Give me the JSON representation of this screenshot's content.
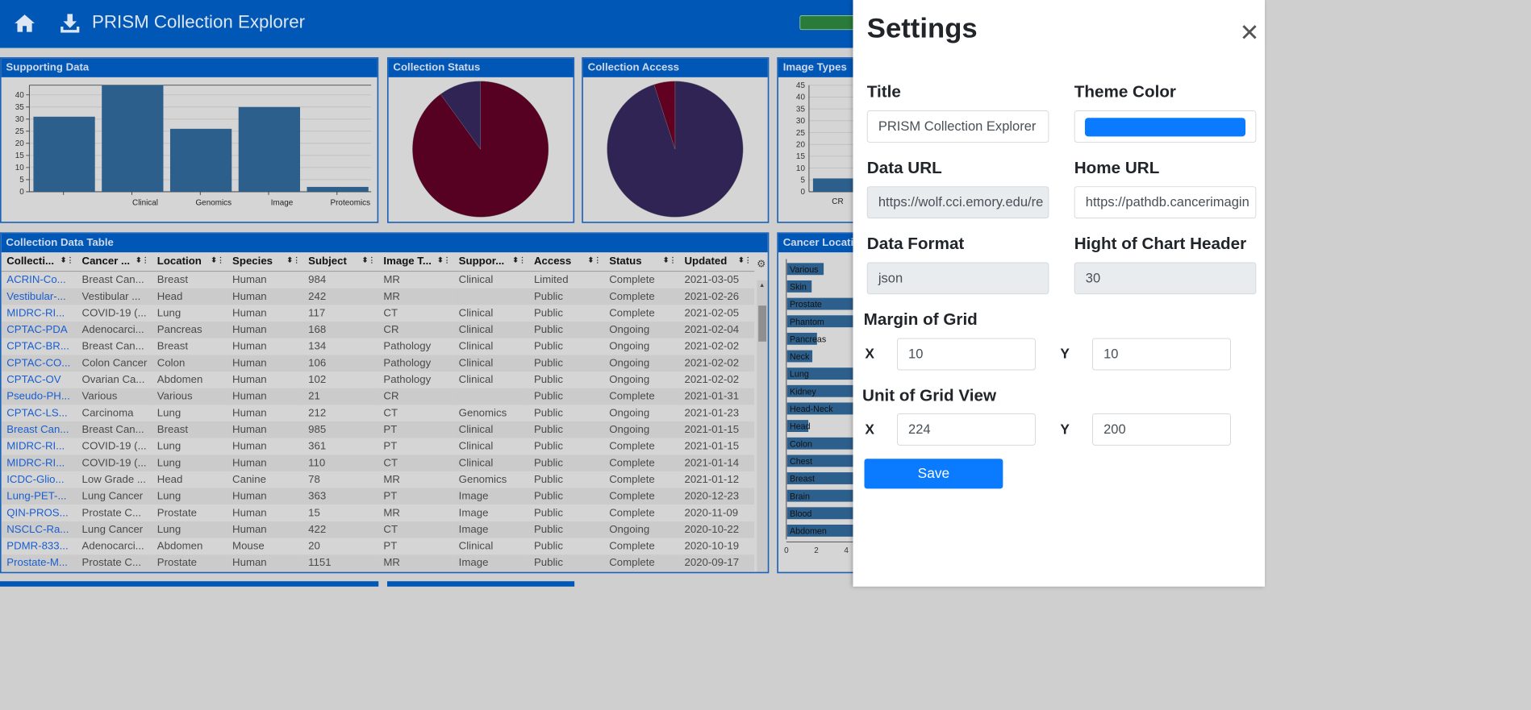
{
  "app": {
    "title": "PRISM Collection Explorer",
    "theme_color": "#0157b6"
  },
  "panels": {
    "supporting": {
      "title": "Supporting Data",
      "chart_data": {
        "type": "bar",
        "categories": [
          "",
          "Clinical",
          "Genomics",
          "Image",
          "Proteomics"
        ],
        "values": [
          31,
          44,
          26,
          35,
          2
        ],
        "ylim": [
          0,
          44
        ],
        "yticks": [
          0,
          5,
          10,
          15,
          20,
          25,
          30,
          35,
          40
        ],
        "color": "#2d5f8c"
      }
    },
    "status": {
      "title": "Collection Status",
      "chart_data": {
        "type": "pie",
        "values": [
          90,
          10
        ],
        "colors": [
          "#560022",
          "#302455"
        ]
      }
    },
    "access": {
      "title": "Collection Access",
      "chart_data": {
        "type": "pie",
        "values": [
          95,
          5
        ],
        "colors": [
          "#302455",
          "#620022"
        ]
      }
    },
    "image_types": {
      "title": "Image Types",
      "yticks": [
        "45",
        "40",
        "35",
        "30",
        "25",
        "20",
        "15",
        "10",
        "5",
        "0"
      ],
      "first_category": "CR"
    },
    "cancer": {
      "title": "Cancer Location",
      "items": [
        "Various",
        "Skin",
        "Prostate",
        "Phantom",
        "Pancreas",
        "Neck",
        "Lung",
        "Kidney",
        "Head-Neck",
        "Head",
        "Colon",
        "Chest",
        "Breast",
        "Brain",
        "Blood",
        "Abdomen"
      ],
      "widths": [
        0.55,
        0.37,
        1,
        1,
        0.45,
        0.38,
        1,
        1,
        1,
        0.32,
        1,
        1,
        1,
        1,
        1,
        1
      ],
      "xticks": [
        "0",
        "2",
        "4"
      ]
    }
  },
  "table": {
    "title": "Collection Data Table",
    "columns": [
      "Collecti...",
      "Cancer ...",
      "Location",
      "Species",
      "Subject",
      "Image T...",
      "Suppor...",
      "Access",
      "Status",
      "Updated"
    ],
    "rows": [
      [
        "ACRIN-Co...",
        "Breast Can...",
        "Breast",
        "Human",
        "984",
        "MR",
        "Clinical",
        "Limited",
        "Complete",
        "2021-03-05"
      ],
      [
        "Vestibular-...",
        "Vestibular ...",
        "Head",
        "Human",
        "242",
        "MR",
        "",
        "Public",
        "Complete",
        "2021-02-26"
      ],
      [
        "MIDRC-RI...",
        "COVID-19 (...",
        "Lung",
        "Human",
        "117",
        "CT",
        "Clinical",
        "Public",
        "Complete",
        "2021-02-05"
      ],
      [
        "CPTAC-PDA",
        "Adenocarci...",
        "Pancreas",
        "Human",
        "168",
        "CR",
        "Clinical",
        "Public",
        "Ongoing",
        "2021-02-04"
      ],
      [
        "CPTAC-BR...",
        "Breast Can...",
        "Breast",
        "Human",
        "134",
        "Pathology",
        "Clinical",
        "Public",
        "Ongoing",
        "2021-02-02"
      ],
      [
        "CPTAC-CO...",
        "Colon Cancer",
        "Colon",
        "Human",
        "106",
        "Pathology",
        "Clinical",
        "Public",
        "Ongoing",
        "2021-02-02"
      ],
      [
        "CPTAC-OV",
        "Ovarian Ca...",
        "Abdomen",
        "Human",
        "102",
        "Pathology",
        "Clinical",
        "Public",
        "Ongoing",
        "2021-02-02"
      ],
      [
        "Pseudo-PH...",
        "Various",
        "Various",
        "Human",
        "21",
        "CR",
        "",
        "Public",
        "Complete",
        "2021-01-31"
      ],
      [
        "CPTAC-LS...",
        "Carcinoma",
        "Lung",
        "Human",
        "212",
        "CT",
        "Genomics",
        "Public",
        "Ongoing",
        "2021-01-23"
      ],
      [
        "Breast Can...",
        "Breast Can...",
        "Breast",
        "Human",
        "985",
        "PT",
        "Clinical",
        "Public",
        "Ongoing",
        "2021-01-15"
      ],
      [
        "MIDRC-RI...",
        "COVID-19 (...",
        "Lung",
        "Human",
        "361",
        "PT",
        "Clinical",
        "Public",
        "Complete",
        "2021-01-15"
      ],
      [
        "MIDRC-RI...",
        "COVID-19 (...",
        "Lung",
        "Human",
        "110",
        "CT",
        "Clinical",
        "Public",
        "Complete",
        "2021-01-14"
      ],
      [
        "ICDC-Glio...",
        "Low Grade ...",
        "Head",
        "Canine",
        "78",
        "MR",
        "Genomics",
        "Public",
        "Complete",
        "2021-01-12"
      ],
      [
        "Lung-PET-...",
        "Lung Cancer",
        "Lung",
        "Human",
        "363",
        "PT",
        "Image",
        "Public",
        "Complete",
        "2020-12-23"
      ],
      [
        "QIN-PROS...",
        "Prostate C...",
        "Prostate",
        "Human",
        "15",
        "MR",
        "Image",
        "Public",
        "Complete",
        "2020-11-09"
      ],
      [
        "NSCLC-Ra...",
        "Lung Cancer",
        "Lung",
        "Human",
        "422",
        "CT",
        "Image",
        "Public",
        "Ongoing",
        "2020-10-22"
      ],
      [
        "PDMR-833...",
        "Adenocarci...",
        "Abdomen",
        "Mouse",
        "20",
        "PT",
        "Clinical",
        "Public",
        "Complete",
        "2020-10-19"
      ],
      [
        "Prostate-M...",
        "Prostate C...",
        "Prostate",
        "Human",
        "1151",
        "MR",
        "Image",
        "Public",
        "Complete",
        "2020-09-17"
      ]
    ]
  },
  "settings": {
    "heading": "Settings",
    "close_symbol": "✕",
    "title_label": "Title",
    "title_value": "PRISM Collection Explorer",
    "theme_label": "Theme Color",
    "theme_value": "#0a7bff",
    "data_url_label": "Data URL",
    "data_url_value": "https://wolf.cci.emory.edu/re",
    "home_url_label": "Home URL",
    "home_url_value": "https://pathdb.cancerimagin",
    "data_format_label": "Data Format",
    "data_format_value": "json",
    "header_height_label": "Hight of Chart Header",
    "header_height_value": "30",
    "margin_label": "Margin of Grid",
    "unit_label": "Unit of Grid View",
    "x_label": "X",
    "y_label": "Y",
    "margin_x": "10",
    "margin_y": "10",
    "unit_x": "224",
    "unit_y": "200",
    "save_label": "Save"
  }
}
